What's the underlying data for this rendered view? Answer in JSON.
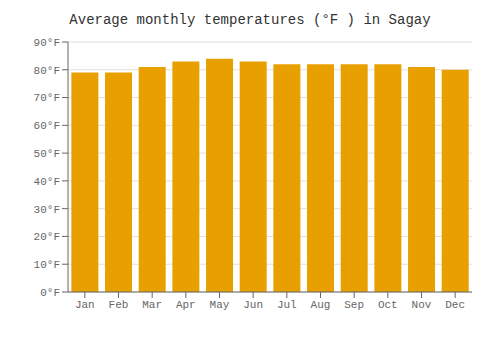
{
  "chart_data": {
    "type": "bar",
    "title": "Average monthly temperatures (°F ) in Sagay",
    "categories": [
      "Jan",
      "Feb",
      "Mar",
      "Apr",
      "May",
      "Jun",
      "Jul",
      "Aug",
      "Sep",
      "Oct",
      "Nov",
      "Dec"
    ],
    "values": [
      79,
      79,
      81,
      83,
      84,
      83,
      82,
      82,
      82,
      82,
      81,
      80
    ],
    "color": "#E8A000",
    "ylim": [
      0,
      90
    ],
    "yticks": [
      {
        "value": 0,
        "label": "0°F"
      },
      {
        "value": 10,
        "label": "10°F"
      },
      {
        "value": 20,
        "label": "20°F"
      },
      {
        "value": 30,
        "label": "30°F"
      },
      {
        "value": 40,
        "label": "40°F"
      },
      {
        "value": 50,
        "label": "50°F"
      },
      {
        "value": 60,
        "label": "60°F"
      },
      {
        "value": 70,
        "label": "70°F"
      },
      {
        "value": 80,
        "label": "80°F"
      },
      {
        "value": 90,
        "label": "90°F"
      }
    ],
    "grid": true
  }
}
